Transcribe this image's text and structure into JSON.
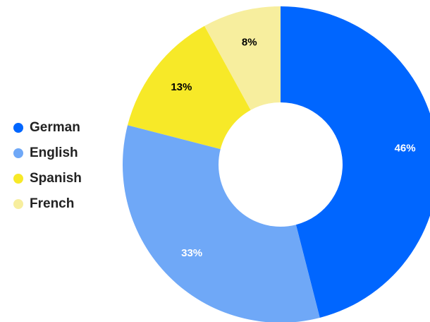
{
  "chart_data": {
    "type": "donut",
    "categories": [
      "German",
      "English",
      "Spanish",
      "French"
    ],
    "values": [
      46,
      33,
      13,
      8
    ],
    "value_labels": [
      "46%",
      "33%",
      "13%",
      "8%"
    ],
    "colors": [
      "#0066ff",
      "#6fa8f7",
      "#f7e928",
      "#f7ee9e"
    ],
    "label_colors": [
      "#ffffff",
      "#ffffff",
      "#000000",
      "#000000"
    ],
    "legend": "left"
  }
}
